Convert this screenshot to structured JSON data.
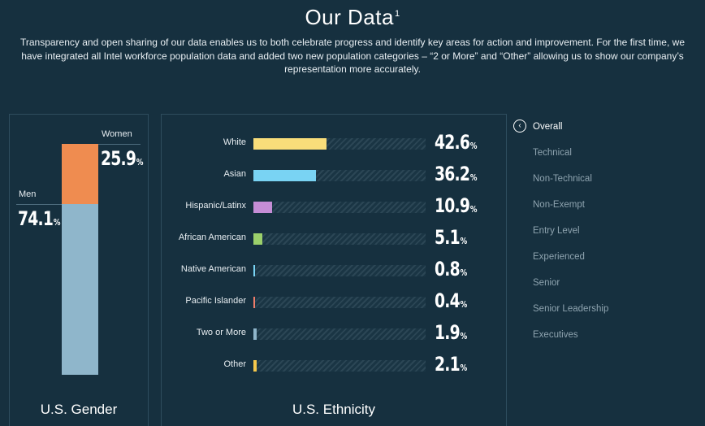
{
  "header": {
    "title": "Our Data",
    "footnote": "1",
    "intro": "Transparency and open sharing of our data enables us to both celebrate progress and identify key areas for action and improvement. For the first time, we have integrated all Intel workforce population data and added two new population categories – “2 or More” and “Other” allowing us to show our company’s representation more accurately."
  },
  "chart_data": [
    {
      "type": "bar",
      "stacked": true,
      "title": "U.S. Gender",
      "categories": [
        "Women",
        "Men"
      ],
      "values": [
        25.9,
        74.1
      ],
      "value_labels": [
        "25.9",
        "74.1"
      ],
      "unit": "%",
      "colors": [
        "#ef8c50",
        "#8fb6cb"
      ],
      "ylim": [
        0,
        100
      ]
    },
    {
      "type": "bar",
      "orientation": "horizontal",
      "title": "U.S. Ethnicity",
      "categories": [
        "White",
        "Asian",
        "Hispanic/Latinx",
        "African American",
        "Native American",
        "Pacific Islander",
        "Two or More",
        "Other"
      ],
      "values": [
        42.6,
        36.2,
        10.9,
        5.1,
        0.8,
        0.4,
        1.9,
        2.1
      ],
      "value_labels": [
        "42.6",
        "36.2",
        "10.9",
        "5.1",
        "0.8",
        "0.4",
        "1.9",
        "2.1"
      ],
      "unit": "%",
      "colors": [
        "#f8dd7a",
        "#79d3f3",
        "#c58dd6",
        "#9bd06b",
        "#79d3f3",
        "#ef7d6a",
        "#8fb6cb",
        "#f5c84c"
      ],
      "xlim": [
        0,
        100
      ]
    }
  ],
  "menu": {
    "back_icon": "chevron-left-circle-icon",
    "items": [
      "Overall",
      "Technical",
      "Non-Technical",
      "Non-Exempt",
      "Entry Level",
      "Experienced",
      "Senior",
      "Senior Leadership",
      "Executives"
    ],
    "active": "Overall"
  }
}
